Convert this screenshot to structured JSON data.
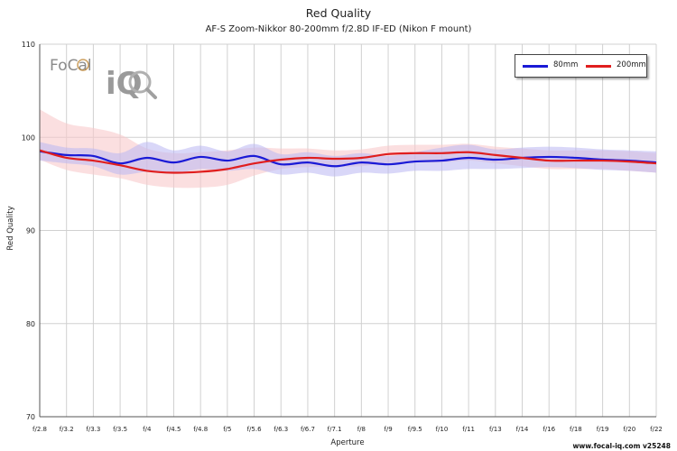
{
  "chart_data": {
    "type": "line",
    "title": "Red Quality",
    "subtitle": "AF-S Zoom-Nikkor 80-200mm f/2.8D IF-ED (Nikon F mount)",
    "xlabel": "Aperture",
    "ylabel": "Red Quality",
    "ylim": [
      70,
      110
    ],
    "yticks": [
      70,
      80,
      90,
      100,
      110
    ],
    "grid": true,
    "legend_position": "top-right",
    "categories": [
      "f/2.8",
      "f/3.2",
      "f/3.3",
      "f/3.5",
      "f/4",
      "f/4.5",
      "f/4.8",
      "f/5",
      "f/5.6",
      "f/6.3",
      "f/6.7",
      "f/7.1",
      "f/8",
      "f/9",
      "f/9.5",
      "f/10",
      "f/11",
      "f/13",
      "f/14",
      "f/16",
      "f/18",
      "f/19",
      "f/20",
      "f/22"
    ],
    "series": [
      {
        "name": "80mm",
        "color": "#1a1ad6",
        "band_color": "#b9b6f2",
        "values": [
          98.5,
          98.1,
          98.0,
          97.2,
          97.8,
          97.3,
          97.9,
          97.5,
          98.0,
          97.1,
          97.3,
          96.9,
          97.3,
          97.1,
          97.4,
          97.5,
          97.8,
          97.6,
          97.8,
          97.9,
          97.8,
          97.6,
          97.5,
          97.3
        ],
        "upper": [
          99.5,
          98.9,
          98.8,
          98.3,
          99.5,
          98.6,
          99.1,
          98.5,
          99.3,
          98.2,
          98.4,
          98.0,
          98.3,
          98.0,
          98.4,
          98.9,
          99.2,
          98.7,
          98.9,
          99.0,
          98.9,
          98.7,
          98.6,
          98.5
        ],
        "lower": [
          97.5,
          97.2,
          96.9,
          96.0,
          96.3,
          96.1,
          96.6,
          96.4,
          96.6,
          96.0,
          96.2,
          95.8,
          96.2,
          96.1,
          96.4,
          96.4,
          96.6,
          96.6,
          96.7,
          96.8,
          96.7,
          96.5,
          96.4,
          96.2
        ]
      },
      {
        "name": "200mm",
        "color": "#e01e1e",
        "band_color": "#f8c9cb",
        "values": [
          98.6,
          97.8,
          97.5,
          97.0,
          96.4,
          96.2,
          96.3,
          96.6,
          97.2,
          97.6,
          97.8,
          97.7,
          97.8,
          98.2,
          98.3,
          98.3,
          98.4,
          98.1,
          97.8,
          97.5,
          97.5,
          97.5,
          97.4,
          97.2
        ],
        "upper": [
          103.0,
          101.5,
          101.0,
          100.3,
          98.8,
          98.3,
          98.4,
          98.6,
          98.9,
          98.8,
          98.8,
          98.6,
          98.7,
          99.1,
          99.2,
          99.2,
          99.3,
          99.0,
          98.8,
          98.6,
          98.6,
          98.6,
          98.5,
          98.3
        ],
        "lower": [
          97.6,
          96.5,
          96.0,
          95.6,
          94.9,
          94.6,
          94.6,
          94.9,
          95.9,
          96.6,
          96.8,
          96.8,
          96.9,
          97.2,
          97.3,
          97.3,
          97.5,
          97.2,
          96.9,
          96.6,
          96.6,
          96.6,
          96.4,
          96.2
        ]
      }
    ]
  },
  "logo": {
    "text_left": "FoCal",
    "text_right": "iQ"
  },
  "footer": "www.focal-iq.com  v25248"
}
